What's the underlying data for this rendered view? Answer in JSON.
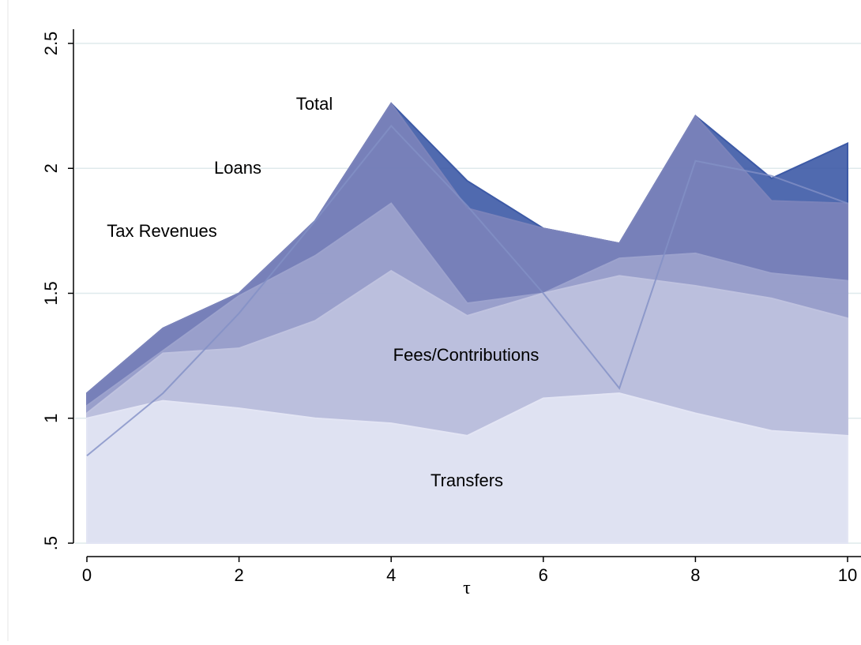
{
  "chart_data": {
    "type": "area",
    "x": [
      0,
      1,
      2,
      3,
      4,
      5,
      6,
      7,
      8,
      9,
      10
    ],
    "xlabel": "τ",
    "series": [
      {
        "name": "Total",
        "color": "#3d5aa6",
        "values": [
          1.1,
          1.36,
          1.5,
          1.79,
          2.26,
          1.95,
          1.76,
          1.7,
          2.21,
          1.96,
          2.1
        ]
      },
      {
        "name": "Loans",
        "color": "#7b83ba",
        "values": [
          1.1,
          1.36,
          1.5,
          1.79,
          2.26,
          1.84,
          1.76,
          1.7,
          2.21,
          1.87,
          1.86
        ]
      },
      {
        "name": "Tax Revenues",
        "color": "#9ca2cd",
        "values": [
          1.05,
          1.27,
          1.49,
          1.65,
          1.86,
          1.46,
          1.5,
          1.64,
          1.66,
          1.58,
          1.55
        ]
      },
      {
        "name": "Fees/Contributions",
        "color": "#bfc2df",
        "values": [
          1.02,
          1.26,
          1.28,
          1.39,
          1.59,
          1.41,
          1.5,
          1.57,
          1.53,
          1.48,
          1.4
        ]
      },
      {
        "name": "Transfers",
        "color": "#e3e5f4",
        "values": [
          1.0,
          1.07,
          1.04,
          1.0,
          0.98,
          0.93,
          1.08,
          1.1,
          1.02,
          0.95,
          0.93
        ]
      },
      {
        "type": "line",
        "color": "#8290c6",
        "values": [
          0.85,
          1.1,
          1.42,
          1.79,
          2.17,
          1.85,
          1.5,
          1.12,
          2.03,
          1.97,
          1.86
        ]
      }
    ],
    "xlim": [
      0,
      10
    ],
    "xticks": [
      0,
      2,
      4,
      6,
      8,
      10
    ],
    "ylim": [
      0.5,
      2.5
    ],
    "yticks": [
      {
        "value": 0.5,
        "label": ".5"
      },
      1,
      1.5,
      2,
      2.5
    ],
    "grid": true
  }
}
